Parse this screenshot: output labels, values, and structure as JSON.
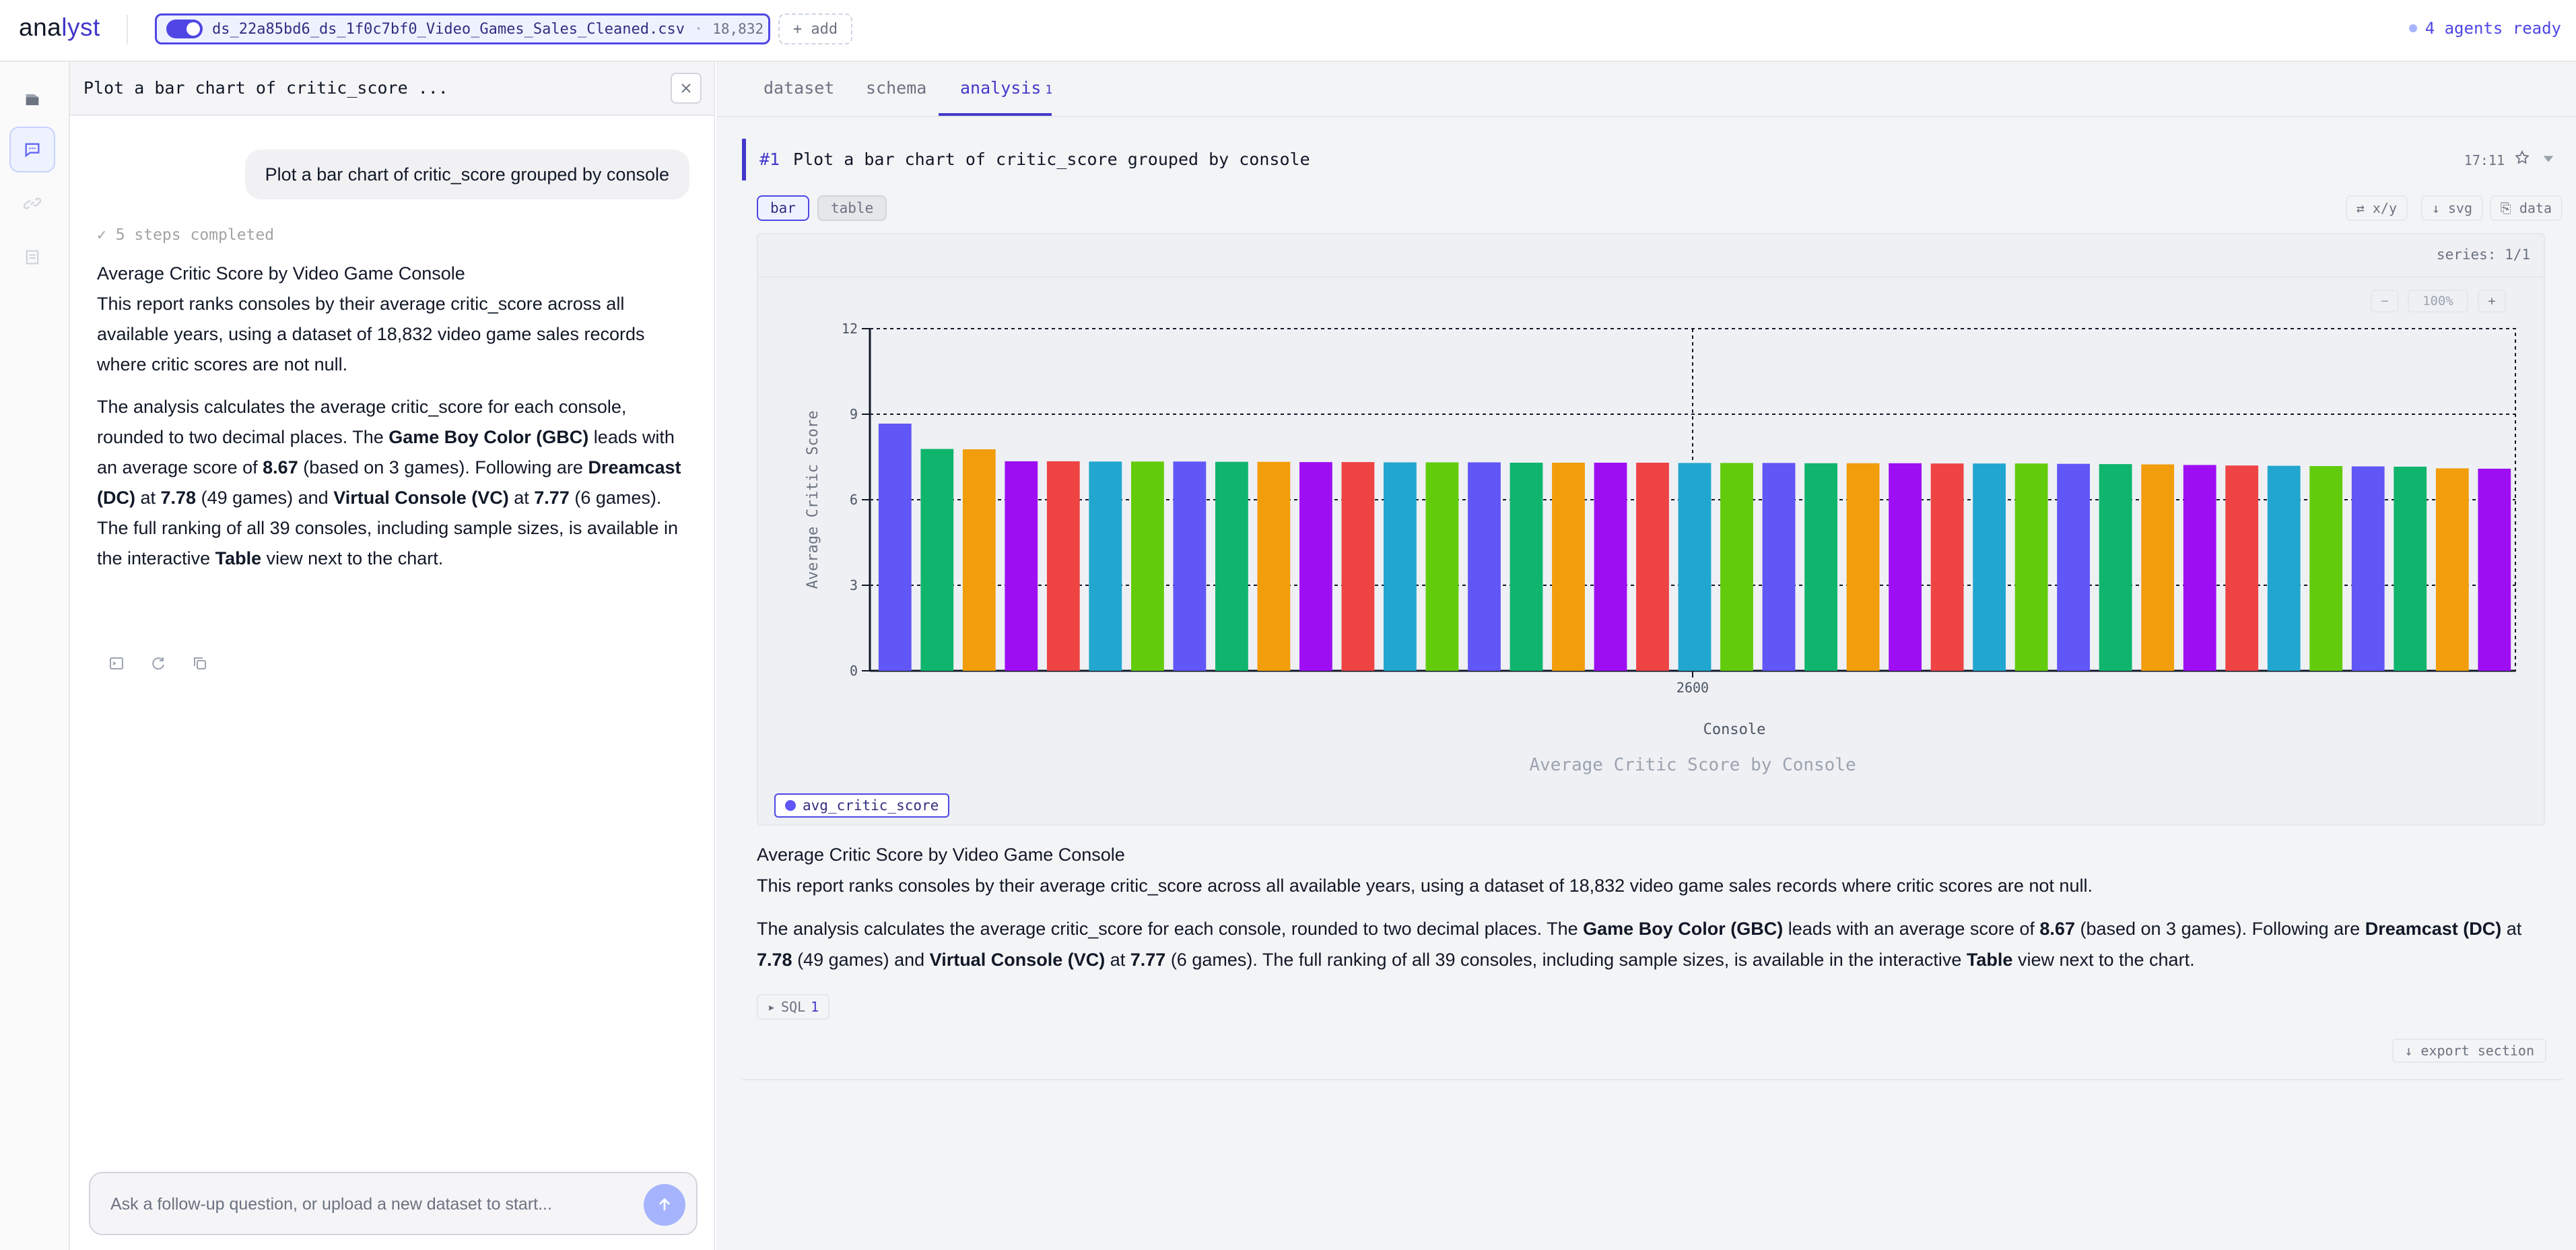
{
  "app": {
    "logo_main": "ana",
    "logo_accent": "lyst"
  },
  "dataset_chip": {
    "name": "ds_22a85bd6_ds_1f0c7bf0_Video_Games_Sales_Cleaned.csv",
    "separator": "·",
    "rows": "18,832"
  },
  "add_button": "+ add",
  "agents_status": "4 agents ready",
  "chat": {
    "title": "Plot a bar chart of critic_score ...",
    "user_message": "Plot a bar chart of critic_score grouped by console",
    "steps": "✓ 5 steps completed",
    "report_heading": "Average Critic Score by Video Game Console",
    "report_p1": "This report ranks consoles by their average critic_score across all available years, using a dataset of 18,832 video game sales records where critic scores are not null.",
    "report_p2": {
      "a": "The analysis calculates the average critic_score for each console, rounded to two decimal places. The ",
      "b": "Game Boy Color (GBC)",
      "c": " leads with an average score of ",
      "d": "8.67",
      "e": " (based on 3 games). Following are ",
      "f": "Dreamcast (DC)",
      "g": " at ",
      "h": "7.78",
      "i": " (49 games) and ",
      "j": "Virtual Console (VC)",
      "k": " at ",
      "l": "7.77",
      "m": " (6 games). The full ranking of all 39 consoles, including sample sizes, is available in the interactive ",
      "n": "Table",
      "o": " view next to the chart."
    },
    "composer_placeholder": "Ask a follow-up question, or upload a new dataset to start..."
  },
  "tabs": [
    {
      "label": "dataset"
    },
    {
      "label": "schema"
    },
    {
      "label": "analysis",
      "badge": "1"
    }
  ],
  "analysis": {
    "number": "#1",
    "prompt": "Plot a bar chart of critic_score grouped by console",
    "time": "17:11",
    "views": [
      "bar",
      "table"
    ],
    "tools": [
      "⇄ x/y",
      "↓ svg",
      "⎘ data"
    ],
    "series_label": "series: 1/1",
    "zoom": {
      "minus": "−",
      "level": "100%",
      "plus": "+"
    },
    "legend": "avg_critic_score",
    "sql_label": "SQL",
    "sql_count": "1",
    "export_label": "↓ export section"
  },
  "chart_data": {
    "type": "bar",
    "title": "Average Critic Score by Console",
    "xlabel": "Console",
    "ylabel": "Average Critic Score",
    "x_tick_labels": [
      "2600"
    ],
    "ylim": [
      0,
      12
    ],
    "yticks": [
      0,
      3,
      6,
      9,
      12
    ],
    "grid": "dashed",
    "series": [
      {
        "name": "avg_critic_score",
        "values": [
          8.67,
          7.78,
          7.77,
          7.35,
          7.35,
          7.34,
          7.34,
          7.34,
          7.33,
          7.33,
          7.32,
          7.32,
          7.31,
          7.31,
          7.31,
          7.3,
          7.3,
          7.3,
          7.3,
          7.29,
          7.29,
          7.29,
          7.28,
          7.28,
          7.28,
          7.27,
          7.27,
          7.27,
          7.26,
          7.25,
          7.24,
          7.22,
          7.2,
          7.19,
          7.18,
          7.17,
          7.16,
          7.1,
          7.09
        ]
      }
    ],
    "palette": [
      "#6156f6",
      "#10b56d",
      "#f29d0b",
      "#9d0ff2",
      "#ee4444",
      "#21a6cf",
      "#62cc0c"
    ]
  }
}
